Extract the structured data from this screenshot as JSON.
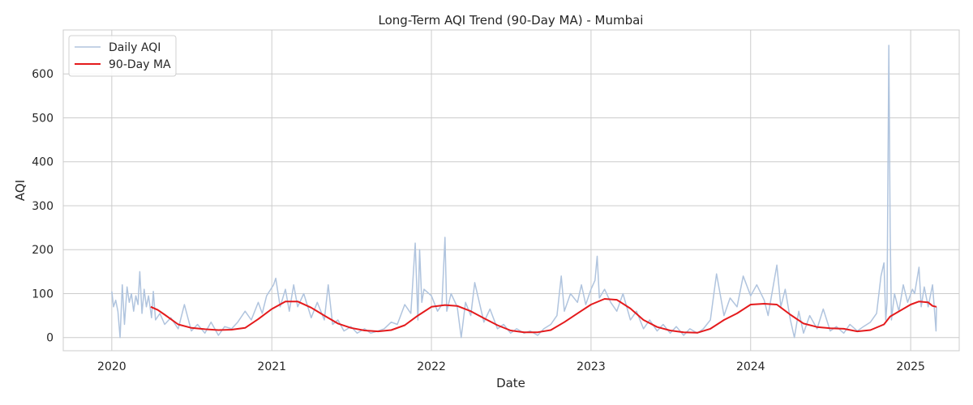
{
  "chart_data": {
    "type": "line",
    "title": "Long-Term AQI Trend (90-Day MA) - Mumbai",
    "xlabel": "Date",
    "ylabel": "AQI",
    "x_range": [
      "2019-09-12",
      "2025-04-22"
    ],
    "ylim": [
      -30,
      700
    ],
    "x_ticks": [
      {
        "date": "2020-01-01",
        "label": "2020"
      },
      {
        "date": "2021-01-01",
        "label": "2021"
      },
      {
        "date": "2022-01-01",
        "label": "2022"
      },
      {
        "date": "2023-01-01",
        "label": "2023"
      },
      {
        "date": "2024-01-01",
        "label": "2024"
      },
      {
        "date": "2025-01-01",
        "label": "2025"
      }
    ],
    "y_ticks": [
      0,
      100,
      200,
      300,
      400,
      500,
      600
    ],
    "grid": true,
    "legend_position": "top-left",
    "series": [
      {
        "name": "Daily AQI",
        "color": "#b0c4de",
        "points": [
          [
            "2020-01-01",
            105
          ],
          [
            "2020-01-05",
            70
          ],
          [
            "2020-01-10",
            85
          ],
          [
            "2020-01-15",
            60
          ],
          [
            "2020-01-20",
            0
          ],
          [
            "2020-01-25",
            120
          ],
          [
            "2020-01-30",
            30
          ],
          [
            "2020-02-05",
            115
          ],
          [
            "2020-02-10",
            80
          ],
          [
            "2020-02-15",
            100
          ],
          [
            "2020-02-20",
            60
          ],
          [
            "2020-02-25",
            95
          ],
          [
            "2020-03-01",
            75
          ],
          [
            "2020-03-05",
            150
          ],
          [
            "2020-03-10",
            55
          ],
          [
            "2020-03-15",
            110
          ],
          [
            "2020-03-20",
            70
          ],
          [
            "2020-03-25",
            95
          ],
          [
            "2020-04-01",
            45
          ],
          [
            "2020-04-05",
            105
          ],
          [
            "2020-04-10",
            40
          ],
          [
            "2020-04-20",
            55
          ],
          [
            "2020-05-01",
            30
          ],
          [
            "2020-05-15",
            45
          ],
          [
            "2020-06-01",
            20
          ],
          [
            "2020-06-15",
            75
          ],
          [
            "2020-07-01",
            15
          ],
          [
            "2020-07-15",
            30
          ],
          [
            "2020-08-01",
            10
          ],
          [
            "2020-08-15",
            35
          ],
          [
            "2020-09-01",
            5
          ],
          [
            "2020-09-15",
            25
          ],
          [
            "2020-10-01",
            20
          ],
          [
            "2020-10-15",
            35
          ],
          [
            "2020-11-01",
            60
          ],
          [
            "2020-11-15",
            40
          ],
          [
            "2020-12-01",
            80
          ],
          [
            "2020-12-10",
            55
          ],
          [
            "2020-12-20",
            95
          ],
          [
            "2021-01-05",
            120
          ],
          [
            "2021-01-10",
            135
          ],
          [
            "2021-01-20",
            70
          ],
          [
            "2021-02-01",
            110
          ],
          [
            "2021-02-10",
            60
          ],
          [
            "2021-02-20",
            120
          ],
          [
            "2021-03-01",
            70
          ],
          [
            "2021-03-15",
            100
          ],
          [
            "2021-04-01",
            45
          ],
          [
            "2021-04-15",
            80
          ],
          [
            "2021-05-01",
            40
          ],
          [
            "2021-05-10",
            120
          ],
          [
            "2021-05-20",
            30
          ],
          [
            "2021-06-01",
            40
          ],
          [
            "2021-06-15",
            15
          ],
          [
            "2021-07-01",
            25
          ],
          [
            "2021-07-15",
            10
          ],
          [
            "2021-08-01",
            20
          ],
          [
            "2021-08-15",
            10
          ],
          [
            "2021-09-01",
            15
          ],
          [
            "2021-09-15",
            20
          ],
          [
            "2021-10-01",
            35
          ],
          [
            "2021-10-15",
            30
          ],
          [
            "2021-11-01",
            75
          ],
          [
            "2021-11-15",
            55
          ],
          [
            "2021-11-25",
            215
          ],
          [
            "2021-12-01",
            40
          ],
          [
            "2021-12-05",
            200
          ],
          [
            "2021-12-10",
            80
          ],
          [
            "2021-12-15",
            110
          ],
          [
            "2022-01-01",
            95
          ],
          [
            "2022-01-15",
            60
          ],
          [
            "2022-01-25",
            75
          ],
          [
            "2022-02-01",
            228
          ],
          [
            "2022-02-05",
            60
          ],
          [
            "2022-02-15",
            100
          ],
          [
            "2022-03-01",
            70
          ],
          [
            "2022-03-10",
            0
          ],
          [
            "2022-03-20",
            80
          ],
          [
            "2022-04-01",
            50
          ],
          [
            "2022-04-10",
            125
          ],
          [
            "2022-05-01",
            35
          ],
          [
            "2022-05-15",
            65
          ],
          [
            "2022-06-01",
            20
          ],
          [
            "2022-06-15",
            30
          ],
          [
            "2022-07-01",
            10
          ],
          [
            "2022-07-15",
            20
          ],
          [
            "2022-08-01",
            10
          ],
          [
            "2022-08-15",
            15
          ],
          [
            "2022-09-01",
            5
          ],
          [
            "2022-09-15",
            20
          ],
          [
            "2022-10-01",
            30
          ],
          [
            "2022-10-15",
            50
          ],
          [
            "2022-10-25",
            140
          ],
          [
            "2022-11-01",
            60
          ],
          [
            "2022-11-15",
            100
          ],
          [
            "2022-12-01",
            80
          ],
          [
            "2022-12-10",
            120
          ],
          [
            "2022-12-20",
            75
          ],
          [
            "2023-01-01",
            110
          ],
          [
            "2023-01-10",
            130
          ],
          [
            "2023-01-15",
            185
          ],
          [
            "2023-01-20",
            90
          ],
          [
            "2023-02-01",
            110
          ],
          [
            "2023-02-15",
            80
          ],
          [
            "2023-03-01",
            60
          ],
          [
            "2023-03-15",
            100
          ],
          [
            "2023-04-01",
            40
          ],
          [
            "2023-04-15",
            60
          ],
          [
            "2023-05-01",
            20
          ],
          [
            "2023-05-15",
            40
          ],
          [
            "2023-06-01",
            15
          ],
          [
            "2023-06-15",
            30
          ],
          [
            "2023-07-01",
            10
          ],
          [
            "2023-07-15",
            25
          ],
          [
            "2023-08-01",
            5
          ],
          [
            "2023-08-15",
            20
          ],
          [
            "2023-09-01",
            10
          ],
          [
            "2023-09-15",
            20
          ],
          [
            "2023-10-01",
            40
          ],
          [
            "2023-10-15",
            145
          ],
          [
            "2023-11-01",
            50
          ],
          [
            "2023-11-15",
            90
          ],
          [
            "2023-12-01",
            70
          ],
          [
            "2023-12-15",
            140
          ],
          [
            "2024-01-01",
            95
          ],
          [
            "2024-01-15",
            120
          ],
          [
            "2024-02-01",
            85
          ],
          [
            "2024-02-10",
            50
          ],
          [
            "2024-03-01",
            165
          ],
          [
            "2024-03-10",
            70
          ],
          [
            "2024-03-20",
            110
          ],
          [
            "2024-04-01",
            40
          ],
          [
            "2024-04-10",
            0
          ],
          [
            "2024-04-20",
            60
          ],
          [
            "2024-05-01",
            10
          ],
          [
            "2024-05-15",
            50
          ],
          [
            "2024-06-01",
            20
          ],
          [
            "2024-06-15",
            65
          ],
          [
            "2024-07-01",
            15
          ],
          [
            "2024-07-15",
            25
          ],
          [
            "2024-08-01",
            10
          ],
          [
            "2024-08-15",
            30
          ],
          [
            "2024-09-01",
            15
          ],
          [
            "2024-09-15",
            25
          ],
          [
            "2024-10-01",
            35
          ],
          [
            "2024-10-15",
            55
          ],
          [
            "2024-10-25",
            140
          ],
          [
            "2024-11-01",
            170
          ],
          [
            "2024-11-05",
            40
          ],
          [
            "2024-11-08",
            80
          ],
          [
            "2024-11-12",
            665
          ],
          [
            "2024-11-15",
            250
          ],
          [
            "2024-11-18",
            40
          ],
          [
            "2024-11-25",
            100
          ],
          [
            "2024-12-05",
            60
          ],
          [
            "2024-12-15",
            120
          ],
          [
            "2024-12-25",
            80
          ],
          [
            "2025-01-05",
            110
          ],
          [
            "2025-01-10",
            100
          ],
          [
            "2025-01-20",
            160
          ],
          [
            "2025-01-25",
            70
          ],
          [
            "2025-02-01",
            115
          ],
          [
            "2025-02-10",
            70
          ],
          [
            "2025-02-20",
            120
          ],
          [
            "2025-02-28",
            15
          ],
          [
            "2025-03-01",
            70
          ]
        ]
      },
      {
        "name": "90-Day MA",
        "color": "#e41a1c",
        "points": [
          [
            "2020-03-30",
            70
          ],
          [
            "2020-04-15",
            63
          ],
          [
            "2020-05-01",
            52
          ],
          [
            "2020-06-01",
            30
          ],
          [
            "2020-07-01",
            22
          ],
          [
            "2020-08-01",
            19
          ],
          [
            "2020-09-01",
            17
          ],
          [
            "2020-10-01",
            18
          ],
          [
            "2020-11-01",
            22
          ],
          [
            "2020-12-01",
            42
          ],
          [
            "2021-01-01",
            65
          ],
          [
            "2021-02-01",
            82
          ],
          [
            "2021-03-01",
            82
          ],
          [
            "2021-04-01",
            68
          ],
          [
            "2021-05-01",
            50
          ],
          [
            "2021-06-01",
            32
          ],
          [
            "2021-07-01",
            22
          ],
          [
            "2021-08-01",
            16
          ],
          [
            "2021-09-01",
            14
          ],
          [
            "2021-10-01",
            17
          ],
          [
            "2021-11-01",
            28
          ],
          [
            "2021-12-01",
            50
          ],
          [
            "2022-01-01",
            70
          ],
          [
            "2022-02-01",
            74
          ],
          [
            "2022-03-01",
            72
          ],
          [
            "2022-04-01",
            60
          ],
          [
            "2022-05-01",
            44
          ],
          [
            "2022-06-01",
            28
          ],
          [
            "2022-07-01",
            16
          ],
          [
            "2022-08-01",
            12
          ],
          [
            "2022-09-01",
            12
          ],
          [
            "2022-10-01",
            17
          ],
          [
            "2022-11-01",
            35
          ],
          [
            "2022-12-01",
            55
          ],
          [
            "2023-01-01",
            75
          ],
          [
            "2023-02-01",
            88
          ],
          [
            "2023-03-01",
            86
          ],
          [
            "2023-04-01",
            66
          ],
          [
            "2023-05-01",
            40
          ],
          [
            "2023-06-01",
            24
          ],
          [
            "2023-07-01",
            16
          ],
          [
            "2023-08-01",
            12
          ],
          [
            "2023-09-01",
            11
          ],
          [
            "2023-10-01",
            20
          ],
          [
            "2023-11-01",
            40
          ],
          [
            "2023-12-01",
            55
          ],
          [
            "2024-01-01",
            75
          ],
          [
            "2024-02-01",
            77
          ],
          [
            "2024-03-01",
            75
          ],
          [
            "2024-04-01",
            52
          ],
          [
            "2024-05-01",
            32
          ],
          [
            "2024-06-01",
            24
          ],
          [
            "2024-07-01",
            21
          ],
          [
            "2024-08-01",
            20
          ],
          [
            "2024-09-01",
            14
          ],
          [
            "2024-10-01",
            17
          ],
          [
            "2024-11-01",
            30
          ],
          [
            "2024-11-15",
            48
          ],
          [
            "2024-12-01",
            57
          ],
          [
            "2025-01-01",
            75
          ],
          [
            "2025-01-20",
            82
          ],
          [
            "2025-02-10",
            80
          ],
          [
            "2025-02-20",
            72
          ],
          [
            "2025-03-01",
            70
          ]
        ]
      }
    ]
  }
}
